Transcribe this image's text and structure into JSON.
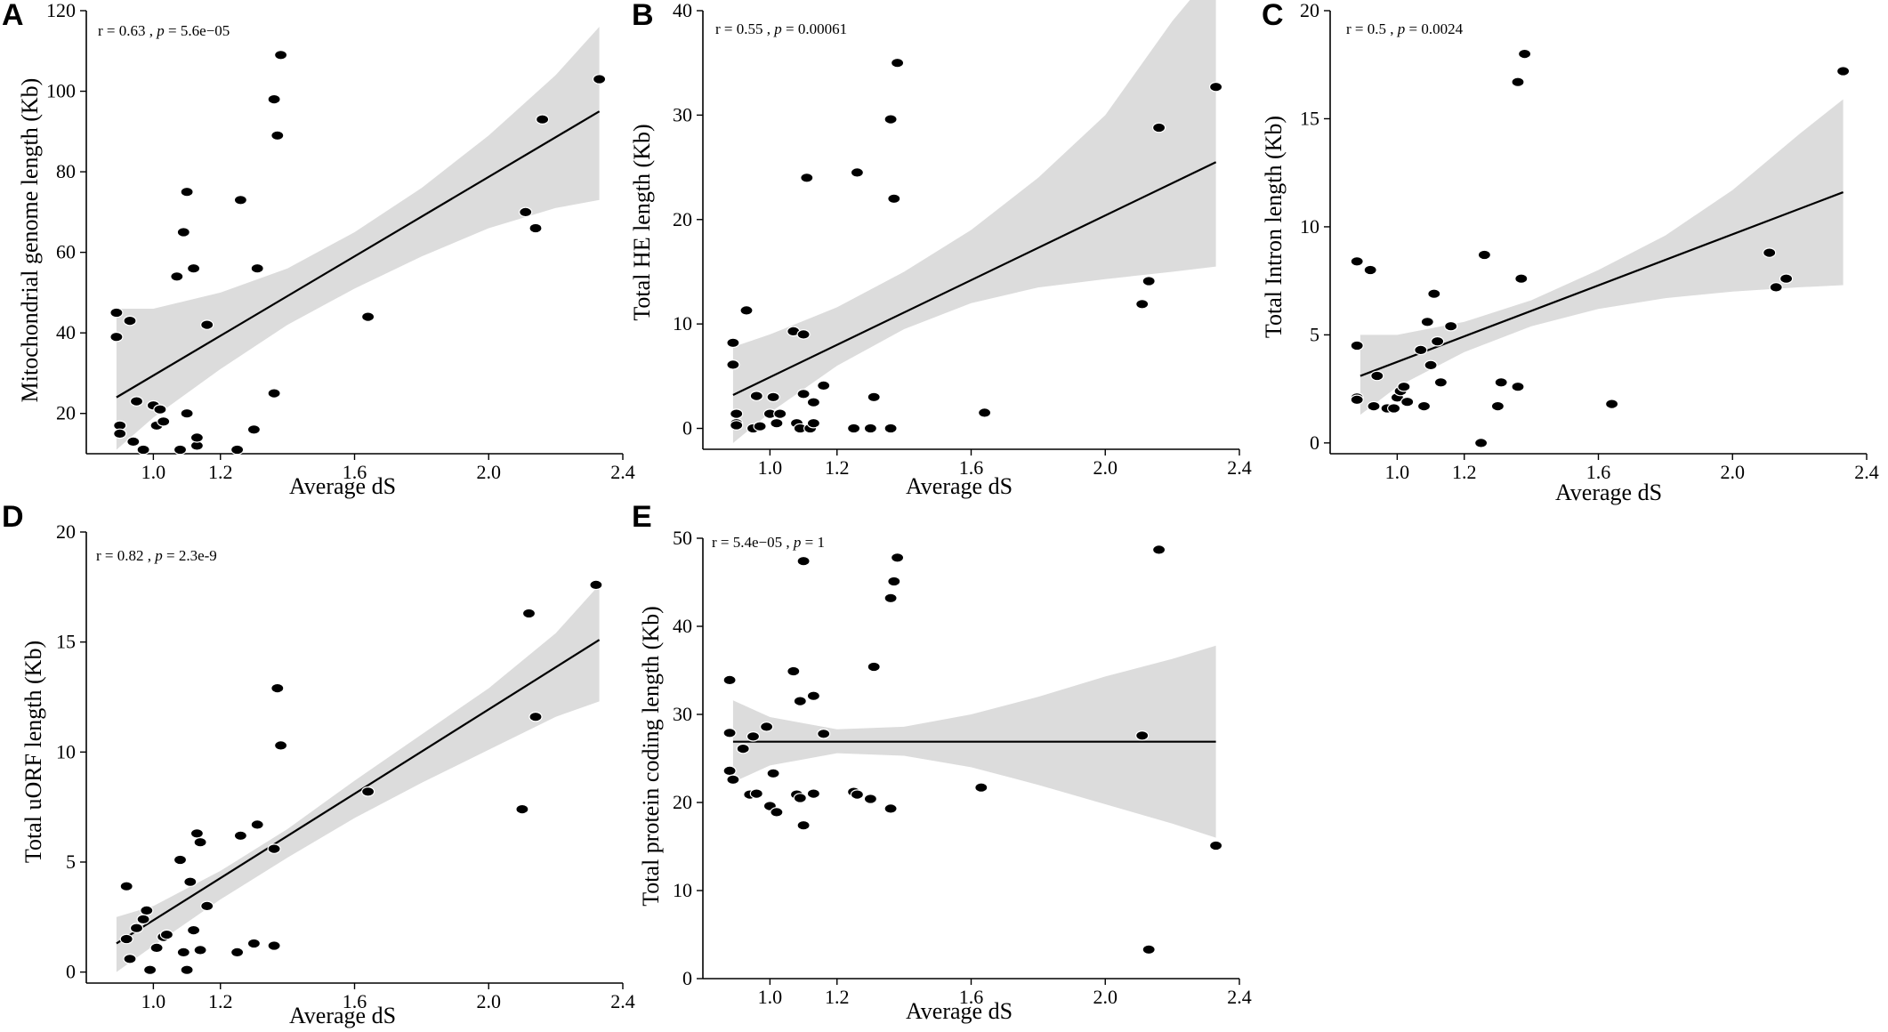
{
  "chart_data": [
    {
      "id": "A",
      "type": "scatter",
      "panel_label": "A",
      "title": "",
      "xlabel": "Average dS",
      "ylabel": "Mitochondrial genome length (Kb)",
      "annotation": {
        "r_text": "r = 0.63 , ",
        "p_symbol": "p",
        "p_text": " = 5.6e−05"
      },
      "xlim": [
        0.8,
        2.4
      ],
      "ylim": [
        10,
        120
      ],
      "x_ticks": [
        1.0,
        1.2,
        1.6,
        2.0,
        2.4
      ],
      "x_tick_labels": [
        "1.0",
        "1.2",
        "1.6",
        "2.0",
        "2.4"
      ],
      "y_ticks": [
        20,
        40,
        60,
        80,
        100,
        120
      ],
      "y_tick_labels": [
        "20",
        "40",
        "60",
        "80",
        "100",
        "120"
      ],
      "fit_line": {
        "x": [
          0.89,
          2.33
        ],
        "y": [
          24,
          95
        ]
      },
      "confidence_band": {
        "x": [
          0.89,
          1.0,
          1.2,
          1.4,
          1.6,
          1.8,
          2.0,
          2.2,
          2.33
        ],
        "lower": [
          11,
          19,
          31,
          42,
          51,
          59,
          66,
          71,
          73
        ],
        "upper": [
          46,
          46,
          50,
          56,
          65,
          76,
          89,
          104,
          116
        ]
      },
      "points": {
        "x": [
          0.89,
          0.89,
          0.9,
          0.9,
          0.93,
          0.94,
          0.95,
          0.97,
          1.0,
          1.01,
          1.02,
          1.03,
          1.07,
          1.08,
          1.09,
          1.1,
          1.1,
          1.12,
          1.13,
          1.13,
          1.16,
          1.25,
          1.26,
          1.3,
          1.31,
          1.36,
          1.36,
          1.37,
          1.38,
          1.64,
          2.11,
          2.14,
          2.16,
          2.33
        ],
        "y": [
          45,
          39,
          17,
          15,
          43,
          13,
          23,
          11,
          22,
          17,
          21,
          18,
          54,
          11,
          65,
          20,
          75,
          56,
          12,
          14,
          42,
          11,
          73,
          16,
          56,
          25,
          98,
          89,
          109,
          44,
          70,
          66,
          93,
          103
        ]
      }
    },
    {
      "id": "B",
      "type": "scatter",
      "panel_label": "B",
      "title": "",
      "xlabel": "Average dS",
      "ylabel": "Total HE length (Kb)",
      "annotation": {
        "r_text": "r = 0.55 , ",
        "p_symbol": "p",
        "p_text": " = 0.00061"
      },
      "xlim": [
        0.8,
        2.4
      ],
      "ylim": [
        -2,
        40
      ],
      "x_ticks": [
        1.0,
        1.2,
        1.6,
        2.0,
        2.4
      ],
      "x_tick_labels": [
        "1.0",
        "1.2",
        "1.6",
        "2.0",
        "2.4"
      ],
      "y_ticks": [
        0,
        10,
        20,
        30,
        40
      ],
      "y_tick_labels": [
        "0",
        "10",
        "20",
        "30",
        "40"
      ],
      "fit_line": {
        "x": [
          0.89,
          2.33
        ],
        "y": [
          3.2,
          25.5
        ]
      },
      "confidence_band": {
        "x": [
          0.89,
          1.0,
          1.2,
          1.4,
          1.6,
          1.8,
          2.0,
          2.2,
          2.33
        ],
        "lower": [
          -1.4,
          1.5,
          6,
          9.5,
          12,
          13.5,
          14.3,
          15,
          15.5
        ],
        "upper": [
          7.8,
          9,
          11.6,
          15,
          19,
          24,
          30,
          39,
          44
        ]
      },
      "points": {
        "x": [
          0.89,
          0.89,
          0.9,
          0.9,
          0.9,
          0.93,
          0.95,
          0.96,
          0.97,
          1.0,
          1.01,
          1.02,
          1.03,
          1.07,
          1.08,
          1.09,
          1.1,
          1.1,
          1.11,
          1.12,
          1.13,
          1.13,
          1.16,
          1.25,
          1.26,
          1.3,
          1.31,
          1.36,
          1.36,
          1.37,
          1.38,
          1.64,
          2.11,
          2.13,
          2.16,
          2.33
        ],
        "y": [
          8.2,
          6.1,
          1.4,
          0.5,
          0.3,
          11.3,
          0.0,
          3.1,
          0.2,
          1.4,
          3.0,
          0.5,
          1.4,
          9.3,
          0.5,
          0.0,
          9.0,
          3.3,
          24.0,
          0.0,
          0.5,
          2.5,
          4.1,
          0.0,
          24.5,
          0.0,
          3.0,
          0.0,
          29.6,
          22.0,
          35.0,
          1.5,
          11.9,
          14.1,
          28.8,
          32.7
        ]
      }
    },
    {
      "id": "C",
      "type": "scatter",
      "panel_label": "C",
      "title": "",
      "xlabel": "Average dS",
      "ylabel": "Total Intron length (Kb)",
      "annotation": {
        "r_text": "r = 0.5 , ",
        "p_symbol": "p",
        "p_text": " = 0.0024"
      },
      "xlim": [
        0.8,
        2.4
      ],
      "ylim": [
        -0.5,
        20
      ],
      "x_ticks": [
        1.0,
        1.2,
        1.6,
        2.0,
        2.4
      ],
      "x_tick_labels": [
        "1.0",
        "1.2",
        "1.6",
        "2.0",
        "2.4"
      ],
      "y_ticks": [
        0,
        5,
        10,
        15,
        20
      ],
      "y_tick_labels": [
        "0",
        "5",
        "10",
        "15",
        "20"
      ],
      "fit_line": {
        "x": [
          0.89,
          2.33
        ],
        "y": [
          3.1,
          11.6
        ]
      },
      "confidence_band": {
        "x": [
          0.89,
          1.0,
          1.2,
          1.4,
          1.6,
          1.8,
          2.0,
          2.2,
          2.33
        ],
        "lower": [
          1.3,
          2.6,
          4.2,
          5.4,
          6.2,
          6.7,
          7.0,
          7.2,
          7.3
        ],
        "upper": [
          5.0,
          5.0,
          5.6,
          6.6,
          8.0,
          9.6,
          11.7,
          14.3,
          15.9
        ]
      },
      "points": {
        "x": [
          0.88,
          0.88,
          0.88,
          0.88,
          0.92,
          0.93,
          0.94,
          0.97,
          0.99,
          1.0,
          1.01,
          1.02,
          1.03,
          1.07,
          1.08,
          1.09,
          1.1,
          1.11,
          1.12,
          1.13,
          1.16,
          1.25,
          1.26,
          1.3,
          1.31,
          1.36,
          1.36,
          1.37,
          1.38,
          1.64,
          2.11,
          2.13,
          2.16,
          2.33
        ],
        "y": [
          8.4,
          4.5,
          2.1,
          2.0,
          8.0,
          1.7,
          3.1,
          1.6,
          1.6,
          2.1,
          2.4,
          2.6,
          1.9,
          4.3,
          1.7,
          5.6,
          3.6,
          6.9,
          4.7,
          2.8,
          5.4,
          0.0,
          8.7,
          1.7,
          2.8,
          2.6,
          16.7,
          7.6,
          18.0,
          1.8,
          8.8,
          7.2,
          7.6,
          17.2
        ]
      }
    },
    {
      "id": "D",
      "type": "scatter",
      "panel_label": "D",
      "title": "",
      "xlabel": "Average dS",
      "ylabel": "Total uORF length (Kb)",
      "annotation": {
        "r_text": "r = 0.82 , ",
        "p_symbol": "p",
        "p_text": " = 2.3e-9"
      },
      "xlim": [
        0.8,
        2.4
      ],
      "ylim": [
        -0.5,
        20
      ],
      "x_ticks": [
        1.0,
        1.2,
        1.6,
        2.0,
        2.4
      ],
      "x_tick_labels": [
        "1.0",
        "1.2",
        "1.6",
        "2.0",
        "2.4"
      ],
      "y_ticks": [
        0,
        5,
        10,
        15,
        20
      ],
      "y_tick_labels": [
        "0",
        "5",
        "10",
        "15",
        "20"
      ],
      "fit_line": {
        "x": [
          0.89,
          2.33
        ],
        "y": [
          1.3,
          15.1
        ]
      },
      "confidence_band": {
        "x": [
          0.89,
          1.0,
          1.2,
          1.4,
          1.6,
          1.8,
          2.0,
          2.2,
          2.33
        ],
        "lower": [
          0.0,
          1.2,
          3.3,
          5.2,
          7.0,
          8.6,
          10.1,
          11.6,
          12.3
        ],
        "upper": [
          2.5,
          3.0,
          4.6,
          6.5,
          8.7,
          10.8,
          12.9,
          15.4,
          17.6
        ]
      },
      "points": {
        "x": [
          0.92,
          0.92,
          0.93,
          0.95,
          0.97,
          0.98,
          0.99,
          1.01,
          1.03,
          1.04,
          1.08,
          1.09,
          1.1,
          1.11,
          1.12,
          1.13,
          1.14,
          1.14,
          1.16,
          1.25,
          1.26,
          1.3,
          1.31,
          1.36,
          1.36,
          1.37,
          1.38,
          1.64,
          2.1,
          2.12,
          2.14,
          2.32
        ],
        "y": [
          3.9,
          1.5,
          0.6,
          2.0,
          2.4,
          2.8,
          0.1,
          1.1,
          1.6,
          1.7,
          5.1,
          0.9,
          0.1,
          4.1,
          1.9,
          6.3,
          5.9,
          1.0,
          3.0,
          0.9,
          6.2,
          1.3,
          6.7,
          5.6,
          1.2,
          12.9,
          10.3,
          8.2,
          7.4,
          16.3,
          11.6,
          17.6
        ]
      }
    },
    {
      "id": "E",
      "type": "scatter",
      "panel_label": "E",
      "title": "",
      "xlabel": "Average dS",
      "ylabel": "Total protein coding length (Kb)",
      "annotation": {
        "r_text": "r = 5.4e−05 , ",
        "p_symbol": "p",
        "p_text": " = 1"
      },
      "xlim": [
        0.8,
        2.4
      ],
      "ylim": [
        0,
        50
      ],
      "x_ticks": [
        1.0,
        1.2,
        1.6,
        2.0,
        2.4
      ],
      "x_tick_labels": [
        "1.0",
        "1.2",
        "1.6",
        "2.0",
        "2.4"
      ],
      "y_ticks": [
        0,
        10,
        20,
        30,
        40,
        50
      ],
      "y_tick_labels": [
        "0",
        "10",
        "20",
        "30",
        "40",
        "50"
      ],
      "fit_line": {
        "x": [
          0.89,
          2.33
        ],
        "y": [
          26.9,
          26.9
        ]
      },
      "confidence_band": {
        "x": [
          0.89,
          1.0,
          1.2,
          1.4,
          1.6,
          1.8,
          2.0,
          2.2,
          2.33
        ],
        "lower": [
          22.3,
          24.2,
          25.6,
          25.3,
          24.0,
          22.0,
          19.8,
          17.6,
          16.0
        ],
        "upper": [
          31.6,
          29.7,
          28.3,
          28.6,
          30.0,
          32.0,
          34.3,
          36.3,
          37.8
        ]
      },
      "points": {
        "x": [
          0.88,
          0.88,
          0.88,
          0.89,
          0.92,
          0.94,
          0.95,
          0.96,
          0.99,
          1.0,
          1.01,
          1.02,
          1.07,
          1.08,
          1.09,
          1.09,
          1.1,
          1.1,
          1.13,
          1.13,
          1.16,
          1.25,
          1.26,
          1.3,
          1.31,
          1.36,
          1.36,
          1.37,
          1.38,
          1.63,
          2.11,
          2.13,
          2.16,
          2.33
        ],
        "y": [
          33.9,
          27.9,
          23.6,
          22.6,
          26.1,
          20.9,
          27.5,
          21.0,
          28.6,
          19.6,
          23.3,
          18.9,
          34.9,
          20.9,
          31.5,
          20.5,
          17.4,
          47.4,
          32.1,
          21.0,
          27.8,
          21.2,
          20.9,
          20.4,
          35.4,
          43.2,
          19.3,
          45.1,
          47.8,
          21.7,
          27.6,
          3.3,
          48.7,
          15.1
        ]
      }
    }
  ]
}
